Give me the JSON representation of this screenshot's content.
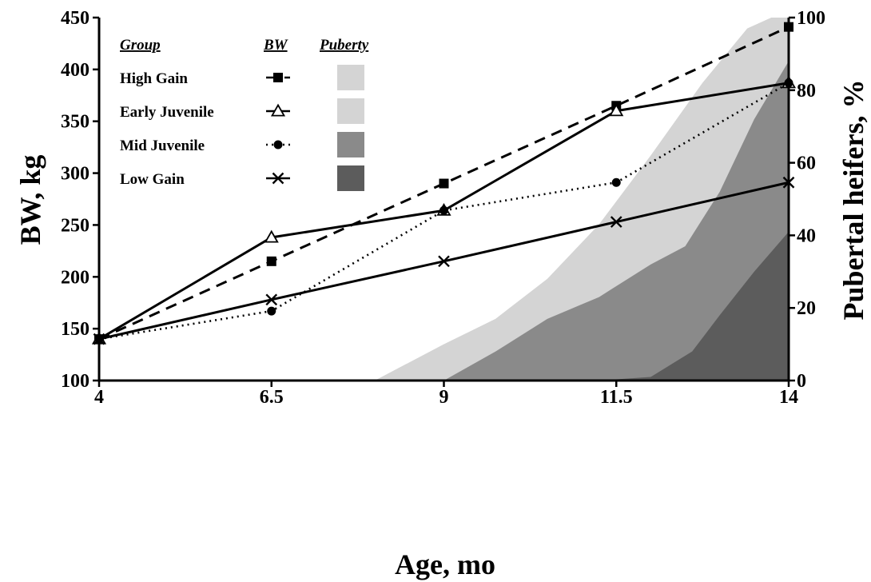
{
  "chart_data": {
    "type": "line",
    "title": "",
    "xlabel": "Age, mo",
    "ylabel": "BW, kg",
    "y2label": "Pubertal heifers, %",
    "x": [
      4,
      6.5,
      9,
      11.5,
      14
    ],
    "x_tick_labels": [
      "4",
      "6.5",
      "9",
      "11.5",
      "14"
    ],
    "xlim": [
      4,
      14
    ],
    "ylim": [
      100,
      450
    ],
    "y_ticks": [
      100,
      150,
      200,
      250,
      300,
      350,
      400,
      450
    ],
    "y2lim": [
      0,
      100
    ],
    "y2_ticks": [
      0,
      20,
      40,
      60,
      80,
      100
    ],
    "grid": false,
    "legend": {
      "position": "top-left",
      "headers": {
        "group": "Group",
        "bw": "BW",
        "puberty": "Puberty"
      },
      "entries": [
        "High Gain",
        "Early Juvenile",
        "Mid Juvenile",
        "Low Gain"
      ]
    },
    "series": [
      {
        "name": "High Gain",
        "marker": "square",
        "line": "dashed",
        "values": [
          140,
          215,
          290,
          365,
          441
        ]
      },
      {
        "name": "Early Juvenile",
        "marker": "triangle-open",
        "line": "solid",
        "values": [
          140,
          238,
          264,
          360,
          387
        ]
      },
      {
        "name": "Mid Juvenile",
        "marker": "circle",
        "line": "dotted",
        "values": [
          140,
          167,
          264,
          291,
          387
        ]
      },
      {
        "name": "Low Gain",
        "marker": "x",
        "line": "solid",
        "values": [
          140,
          178,
          215,
          253,
          291
        ]
      }
    ],
    "puberty_series": [
      {
        "name": "High Gain",
        "color": "#d4d4d4",
        "x": [
          8.0,
          9.0,
          9.75,
          10.5,
          11.25,
          12.0,
          12.75,
          13.4,
          13.75,
          14.0
        ],
        "values": [
          0,
          10,
          17,
          28,
          43,
          62,
          82,
          97,
          100,
          100
        ]
      },
      {
        "name": "Early Juvenile",
        "color": "#d4d4d4",
        "x": [
          8.0,
          9.0,
          9.75,
          10.5,
          11.25,
          12.0,
          12.75,
          13.4,
          13.75,
          14.0
        ],
        "values": [
          0,
          10,
          17,
          28,
          43,
          62,
          82,
          97,
          100,
          100
        ]
      },
      {
        "name": "Mid Juvenile",
        "color": "#8a8a8a",
        "x": [
          9.0,
          9.75,
          10.5,
          11.25,
          12.0,
          12.5,
          13.0,
          13.5,
          14.0
        ],
        "values": [
          0,
          8,
          17,
          23,
          32,
          37,
          52,
          72,
          88
        ]
      },
      {
        "name": "Low Gain",
        "color": "#5c5c5c",
        "x": [
          11.25,
          12.0,
          12.6,
          13.0,
          13.5,
          14.0
        ],
        "values": [
          0,
          1,
          8,
          18,
          30,
          41
        ]
      }
    ]
  }
}
